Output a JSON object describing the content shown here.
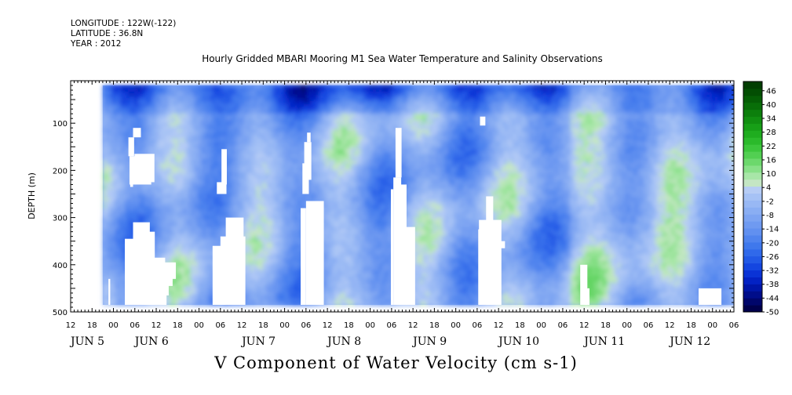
{
  "header": {
    "lines": [
      "LONGITUDE : 122W(-122)",
      "LATITUDE : 36.8N",
      "YEAR : 2012"
    ]
  },
  "chart_data": {
    "type": "heatmap",
    "title": "Hourly Gridded MBARI Mooring M1 Sea Water Temperature and Salinity Observations",
    "variable_title": "V Component of Water Velocity (cm s-1)",
    "ylabel": "DEPTH (m)",
    "xlabel": "",
    "x_range_hours": [
      0,
      186
    ],
    "ylim": [
      500,
      10
    ],
    "y_ticks": [
      100,
      200,
      300,
      400,
      500
    ],
    "y_tick_labels": [
      "100",
      "200",
      "300",
      "400",
      "500"
    ],
    "x_hour_ticks": [
      0,
      6,
      12,
      18,
      24,
      30,
      36,
      42,
      48,
      54,
      60,
      66,
      72,
      78,
      84,
      90,
      96,
      102,
      108,
      114,
      120,
      126,
      132,
      138,
      144,
      150,
      156,
      162,
      168,
      174,
      180,
      186
    ],
    "x_hour_tick_labels": [
      "12",
      "18",
      "00",
      "06",
      "12",
      "18",
      "00",
      "06",
      "12",
      "18",
      "00",
      "06",
      "12",
      "18",
      "00",
      "06",
      "12",
      "18",
      "00",
      "06",
      "12",
      "18",
      "00",
      "06",
      "12",
      "18",
      "00",
      "06",
      "12",
      "18",
      "00",
      "06"
    ],
    "day_labels": [
      {
        "hour": 0,
        "text": "JUN  5"
      },
      {
        "hour": 18,
        "text": "JUN  6"
      },
      {
        "hour": 48,
        "text": "JUN  7"
      },
      {
        "hour": 72,
        "text": "JUN  8"
      },
      {
        "hour": 96,
        "text": "JUN  9"
      },
      {
        "hour": 120,
        "text": "JUN 10"
      },
      {
        "hour": 144,
        "text": "JUN 11"
      },
      {
        "hour": 168,
        "text": "JUN 12"
      }
    ],
    "data_extent": {
      "x_start_hour": 9,
      "x_end_hour": 189,
      "depth_top": 20,
      "depth_bottom": 485
    },
    "colorbar": {
      "min": -50,
      "max": 50,
      "labels": [
        "46",
        "40",
        "34",
        "28",
        "22",
        "16",
        "10",
        "4",
        "-2",
        "-8",
        "-14",
        "-20",
        "-26",
        "-32",
        "-38",
        "-44",
        "-50"
      ],
      "levels": [
        -50,
        -47,
        -44,
        -41,
        -38,
        -35,
        -32,
        -29,
        -26,
        -23,
        -20,
        -17,
        -14,
        -11,
        -8,
        -5,
        -2,
        1,
        4,
        7,
        10,
        13,
        16,
        19,
        22,
        25,
        28,
        31,
        34,
        37,
        40,
        43,
        46,
        49
      ],
      "colors": [
        "#00004c",
        "#00066b",
        "#000d8a",
        "#0016a8",
        "#0322c4",
        "#0a33d6",
        "#1446e0",
        "#2259e6",
        "#3069ea",
        "#3f78ec",
        "#5084ee",
        "#6190f0",
        "#6f9af1",
        "#7da4f2",
        "#8aaef3",
        "#98b8f4",
        "#a6c2f5",
        "#b6ccf5",
        "#c4e6c4",
        "#a8e6a8",
        "#88e088",
        "#6cd86c",
        "#52cf52",
        "#3cc63c",
        "#2bba2b",
        "#1fad1f",
        "#179f17",
        "#118f11",
        "#0c7f0c",
        "#086e08",
        "#055e05",
        "#034e03",
        "#023e02"
      ]
    },
    "missing_regions": [
      {
        "x0": 10.6,
        "x1": 11.1,
        "y0": 430,
        "y1": 485
      },
      {
        "x0": 17.5,
        "x1": 19.7,
        "y0": 110,
        "y1": 130
      },
      {
        "x0": 16.2,
        "x1": 17.8,
        "y0": 130,
        "y1": 170
      },
      {
        "x0": 17.9,
        "x1": 23.5,
        "y0": 165,
        "y1": 225
      },
      {
        "x0": 16.5,
        "x1": 22.6,
        "y0": 170,
        "y1": 230
      },
      {
        "x0": 16.7,
        "x1": 17.5,
        "y0": 225,
        "y1": 235
      },
      {
        "x0": 15.2,
        "x1": 23.2,
        "y0": 345,
        "y1": 485
      },
      {
        "x0": 17.5,
        "x1": 22.2,
        "y0": 310,
        "y1": 350
      },
      {
        "x0": 19.8,
        "x1": 23.6,
        "y0": 330,
        "y1": 485
      },
      {
        "x0": 21.5,
        "x1": 26.5,
        "y0": 385,
        "y1": 485
      },
      {
        "x0": 25.5,
        "x1": 29.5,
        "y0": 395,
        "y1": 430
      },
      {
        "x0": 23.5,
        "x1": 28.6,
        "y0": 425,
        "y1": 445
      },
      {
        "x0": 24.2,
        "x1": 27.5,
        "y0": 440,
        "y1": 465
      },
      {
        "x0": 25.5,
        "x1": 26.9,
        "y0": 460,
        "y1": 485
      },
      {
        "x0": 42.0,
        "x1": 49.0,
        "y0": 340,
        "y1": 485
      },
      {
        "x0": 39.8,
        "x1": 43.5,
        "y0": 360,
        "y1": 485
      },
      {
        "x0": 43.5,
        "x1": 48.5,
        "y0": 300,
        "y1": 350
      },
      {
        "x0": 41.0,
        "x1": 43.7,
        "y0": 225,
        "y1": 250
      },
      {
        "x0": 42.3,
        "x1": 43.8,
        "y0": 155,
        "y1": 230
      },
      {
        "x0": 66.3,
        "x1": 67.3,
        "y0": 120,
        "y1": 140
      },
      {
        "x0": 65.5,
        "x1": 67.5,
        "y0": 140,
        "y1": 220
      },
      {
        "x0": 65.0,
        "x1": 66.8,
        "y0": 185,
        "y1": 250
      },
      {
        "x0": 66.0,
        "x1": 71.0,
        "y0": 265,
        "y1": 485
      },
      {
        "x0": 64.5,
        "x1": 66.0,
        "y0": 280,
        "y1": 485
      },
      {
        "x0": 91.1,
        "x1": 92.8,
        "y0": 110,
        "y1": 215
      },
      {
        "x0": 90.5,
        "x1": 92.7,
        "y0": 215,
        "y1": 485
      },
      {
        "x0": 92.6,
        "x1": 94.2,
        "y0": 230,
        "y1": 485
      },
      {
        "x0": 94.0,
        "x1": 96.6,
        "y0": 320,
        "y1": 485
      },
      {
        "x0": 89.8,
        "x1": 90.5,
        "y0": 240,
        "y1": 485
      },
      {
        "x0": 114.8,
        "x1": 116.3,
        "y0": 86,
        "y1": 105
      },
      {
        "x0": 116.5,
        "x1": 118.5,
        "y0": 255,
        "y1": 485
      },
      {
        "x0": 114.5,
        "x1": 120.8,
        "y0": 305,
        "y1": 485
      },
      {
        "x0": 114.3,
        "x1": 115.5,
        "y0": 325,
        "y1": 485
      },
      {
        "x0": 120.4,
        "x1": 121.8,
        "y0": 350,
        "y1": 365
      },
      {
        "x0": 142.9,
        "x1": 144.9,
        "y0": 400,
        "y1": 485
      },
      {
        "x0": 144.0,
        "x1": 145.5,
        "y0": 450,
        "y1": 485
      },
      {
        "x0": 176.1,
        "x1": 182.5,
        "y0": 450,
        "y1": 485
      }
    ]
  }
}
